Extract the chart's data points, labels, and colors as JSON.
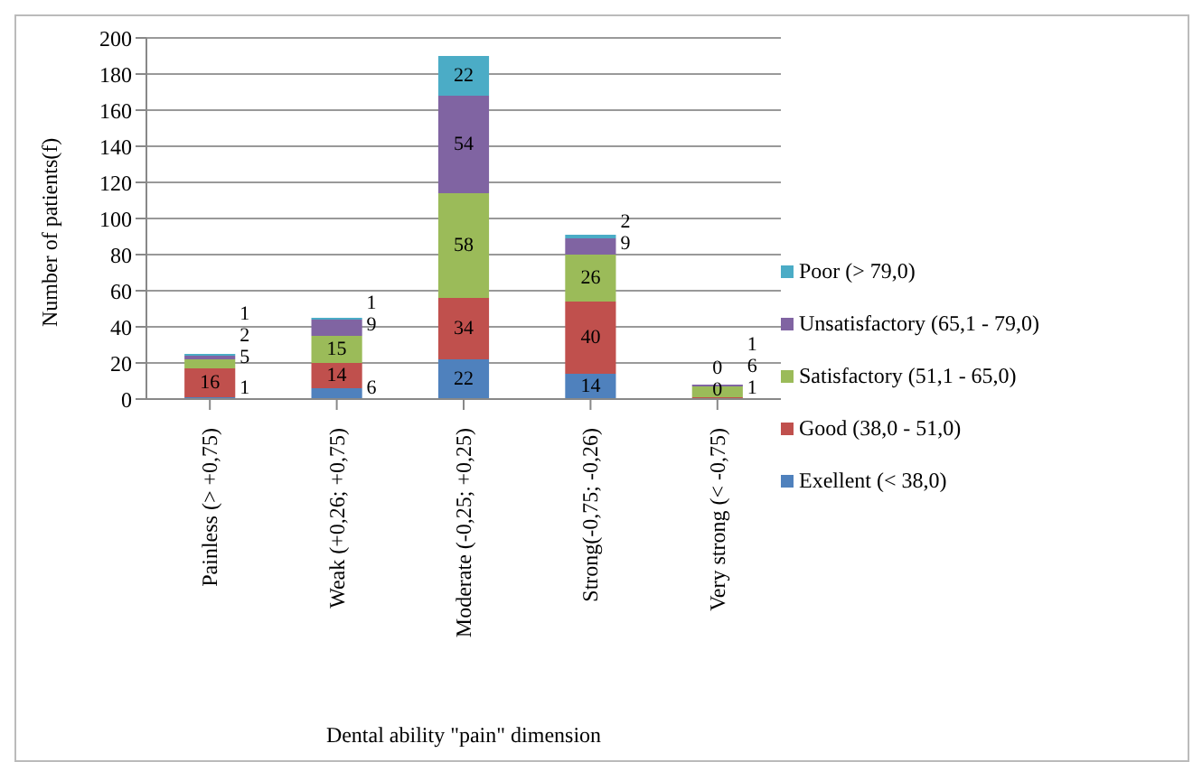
{
  "chart_data": {
    "type": "bar",
    "stacked": true,
    "xlabel": "Dental ability \"pain\" dimension",
    "ylabel": "Number of patients(f)",
    "categories": [
      "Painless (> +0,75)",
      "Weak (+0,26; +0,75)",
      "Moderate (-0,25; +0,25)",
      "Strong(-0,75; -0,26)",
      "Very strong (< -0,75)"
    ],
    "series": [
      {
        "name": "Exellent (< 38,0)",
        "color": "#4f81bd",
        "values": [
          1,
          6,
          22,
          14,
          0
        ]
      },
      {
        "name": "Good (38,0 - 51,0)",
        "color": "#c0504d",
        "values": [
          16,
          14,
          34,
          40,
          1
        ]
      },
      {
        "name": "Satisfactory (51,1 - 65,0)",
        "color": "#9bbb59",
        "values": [
          5,
          15,
          58,
          26,
          6
        ]
      },
      {
        "name": "Unsatisfactory (65,1 - 79,0)",
        "color": "#8064a2",
        "values": [
          2,
          9,
          54,
          9,
          1
        ]
      },
      {
        "name": "Poor (> 79,0)",
        "color": "#4bacc6",
        "values": [
          1,
          1,
          22,
          2,
          0
        ]
      }
    ],
    "ylim": [
      0,
      200
    ],
    "yticks": [
      0,
      20,
      40,
      60,
      80,
      100,
      120,
      140,
      160,
      180,
      200
    ],
    "grid": "y",
    "legend": "right",
    "data_labels": true
  }
}
